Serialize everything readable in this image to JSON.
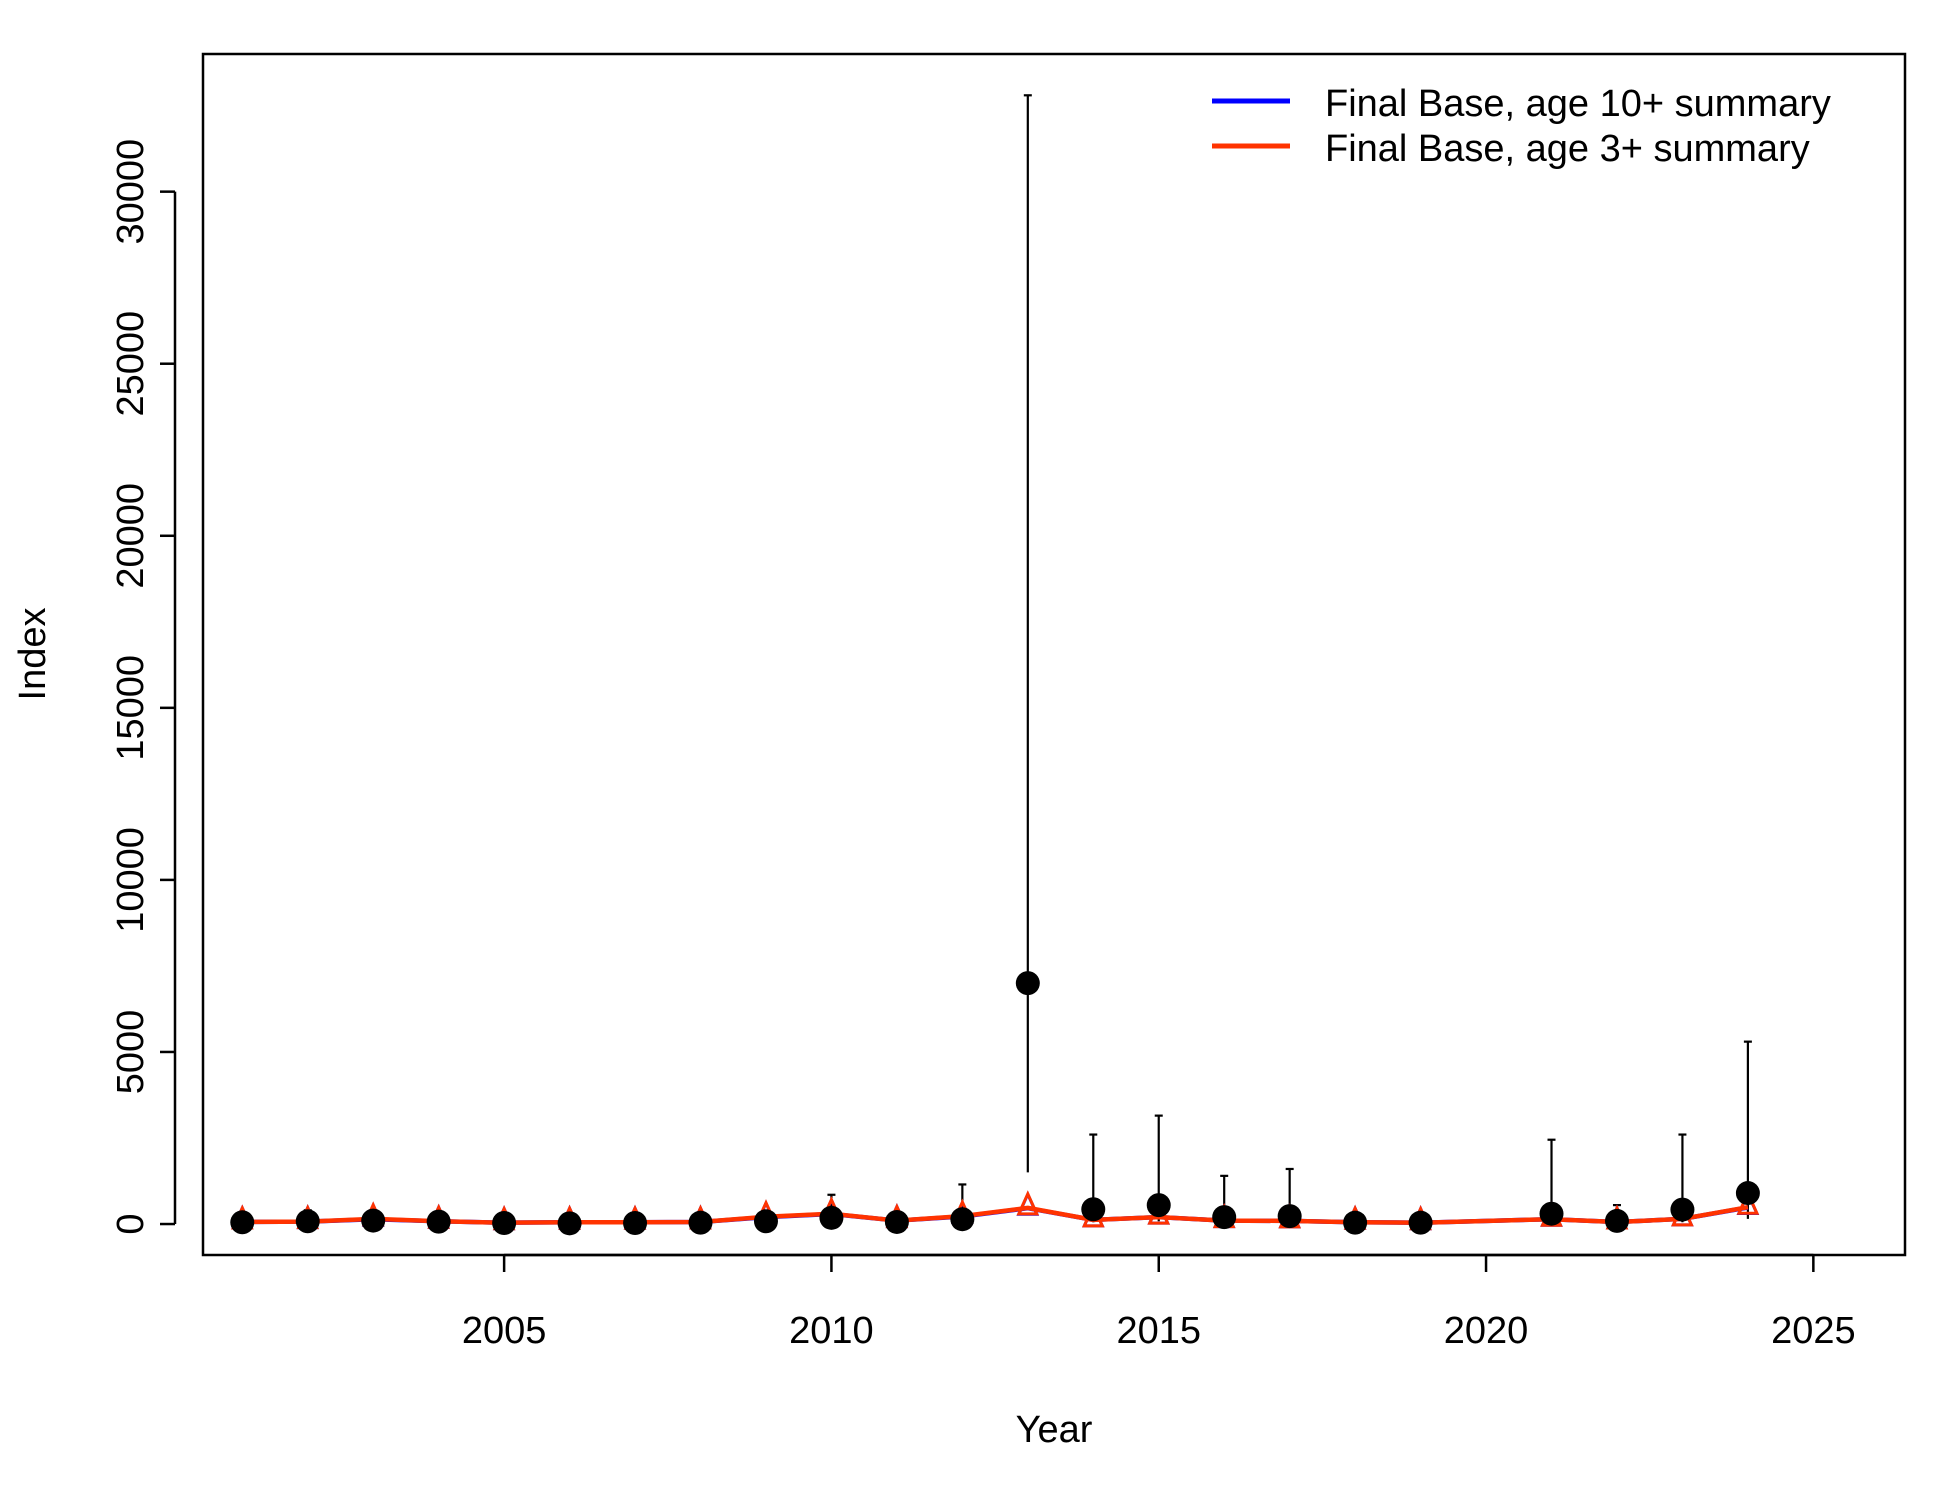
{
  "chart_data": {
    "type": "line",
    "xlabel": "Year",
    "ylabel": "Index",
    "xlim": [
      2000.4,
      2026.4
    ],
    "ylim": [
      -900,
      34000
    ],
    "x_ticks": [
      2005,
      2010,
      2015,
      2020,
      2025
    ],
    "y_ticks": [
      0,
      5000,
      10000,
      15000,
      20000,
      25000,
      30000
    ],
    "grid": false,
    "legend_position": "top-right",
    "colors": {
      "age10": "#0000ff",
      "age3": "#ff3300",
      "observed": "#000000"
    },
    "legend": [
      {
        "label": "Final Base, age 10+ summary",
        "color": "#0000ff"
      },
      {
        "label": "Final Base, age 3+ summary",
        "color": "#ff3300"
      }
    ],
    "series": [
      {
        "name": "Final Base, age 10+ summary",
        "color": "#0000ff",
        "x": [
          2001,
          2002,
          2003,
          2004,
          2005,
          2006,
          2007,
          2008,
          2009,
          2010,
          2011,
          2012,
          2013,
          2014,
          2015,
          2016,
          2017,
          2018,
          2019,
          2021,
          2022,
          2023,
          2024
        ],
        "values": [
          60,
          70,
          140,
          80,
          40,
          50,
          50,
          60,
          200,
          290,
          100,
          220,
          460,
          120,
          200,
          100,
          90,
          50,
          40,
          140,
          60,
          150,
          480
        ]
      },
      {
        "name": "Final Base, age 3+ summary",
        "color": "#ff3300",
        "x": [
          2001,
          2002,
          2003,
          2004,
          2005,
          2006,
          2007,
          2008,
          2009,
          2010,
          2011,
          2012,
          2013,
          2014,
          2015,
          2016,
          2017,
          2018,
          2019,
          2021,
          2022,
          2023,
          2024
        ],
        "values": [
          60,
          70,
          150,
          80,
          40,
          50,
          50,
          60,
          210,
          300,
          100,
          230,
          470,
          120,
          200,
          100,
          90,
          50,
          40,
          140,
          60,
          150,
          490
        ]
      }
    ],
    "observed": {
      "x": [
        2001,
        2002,
        2003,
        2004,
        2005,
        2006,
        2007,
        2008,
        2009,
        2010,
        2011,
        2012,
        2013,
        2014,
        2015,
        2016,
        2017,
        2018,
        2019,
        2021,
        2022,
        2023,
        2024
      ],
      "values": [
        50,
        80,
        100,
        70,
        30,
        20,
        30,
        40,
        80,
        180,
        60,
        140,
        7000,
        430,
        550,
        200,
        230,
        40,
        40,
        300,
        90,
        420,
        900
      ],
      "upper": [
        200,
        400,
        400,
        300,
        150,
        150,
        150,
        150,
        350,
        850,
        300,
        1150,
        32800,
        2600,
        3150,
        1400,
        1600,
        200,
        150,
        2450,
        550,
        2600,
        5300
      ],
      "lower": [
        20,
        20,
        20,
        20,
        10,
        10,
        10,
        10,
        20,
        30,
        10,
        30,
        1500,
        50,
        80,
        30,
        40,
        10,
        10,
        40,
        10,
        50,
        150
      ]
    }
  }
}
